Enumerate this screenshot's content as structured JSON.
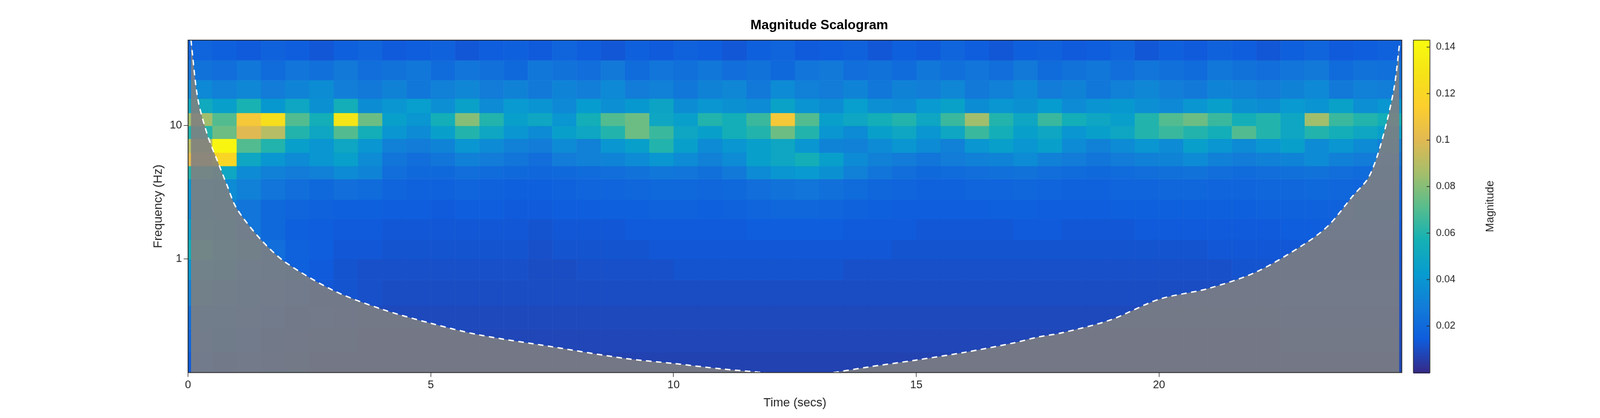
{
  "chart_data": {
    "type": "heatmap",
    "title": "Magnitude Scalogram",
    "x_label": "Time (secs)",
    "y_label": "Frequency (Hz)",
    "xlim": [
      0,
      25
    ],
    "xticks": [
      0,
      5,
      10,
      15,
      20
    ],
    "ylim": [
      0.141,
      43.8
    ],
    "yticks": [
      1,
      10
    ],
    "log": "y",
    "grid": false,
    "x_edges": [
      0,
      0.5,
      1,
      1.5,
      2,
      2.5,
      3,
      3.5,
      4,
      4.5,
      5,
      5.5,
      6,
      6.5,
      7,
      7.5,
      8,
      8.5,
      9,
      9.5,
      10,
      10.5,
      11,
      11.5,
      12,
      12.5,
      13,
      13.5,
      14,
      14.5,
      15,
      15.5,
      16,
      16.5,
      17,
      17.5,
      18,
      18.5,
      19,
      19.5,
      20,
      20.5,
      21,
      21.5,
      22,
      22.5,
      23,
      23.5,
      24,
      24.5,
      25
    ],
    "y_edges": [
      0.141,
      0.2,
      0.3,
      0.45,
      0.7,
      1,
      1.4,
      2,
      2.8,
      4,
      5,
      6.3,
      8,
      10,
      12.5,
      16,
      22,
      31,
      43.8
    ],
    "magnitude": [
      [
        0.014,
        0.013,
        0.011,
        0.01,
        0.009,
        0.008,
        0.008,
        0.007,
        0.007,
        0.007,
        0.007,
        0.007,
        0.007,
        0.007,
        0.007,
        0.007,
        0.007,
        0.007,
        0.007,
        0.007,
        0.007,
        0.007,
        0.007,
        0.007,
        0.007,
        0.007,
        0.007,
        0.007,
        0.007,
        0.007,
        0.007,
        0.007,
        0.007,
        0.007,
        0.007,
        0.007,
        0.007,
        0.007,
        0.007,
        0.007,
        0.007,
        0.007,
        0.007,
        0.007,
        0.007,
        0.008,
        0.008,
        0.008,
        0.008,
        0.008
      ],
      [
        0.018,
        0.016,
        0.014,
        0.012,
        0.01,
        0.009,
        0.009,
        0.008,
        0.008,
        0.008,
        0.008,
        0.008,
        0.008,
        0.008,
        0.008,
        0.008,
        0.008,
        0.008,
        0.008,
        0.008,
        0.008,
        0.008,
        0.008,
        0.008,
        0.008,
        0.008,
        0.008,
        0.008,
        0.008,
        0.008,
        0.008,
        0.008,
        0.008,
        0.008,
        0.008,
        0.008,
        0.008,
        0.008,
        0.008,
        0.008,
        0.008,
        0.008,
        0.008,
        0.008,
        0.008,
        0.009,
        0.009,
        0.009,
        0.009,
        0.009
      ],
      [
        0.022,
        0.02,
        0.017,
        0.014,
        0.012,
        0.011,
        0.01,
        0.009,
        0.009,
        0.009,
        0.009,
        0.009,
        0.009,
        0.009,
        0.009,
        0.009,
        0.009,
        0.009,
        0.009,
        0.009,
        0.009,
        0.009,
        0.009,
        0.009,
        0.009,
        0.009,
        0.009,
        0.009,
        0.009,
        0.009,
        0.009,
        0.009,
        0.009,
        0.009,
        0.009,
        0.009,
        0.009,
        0.009,
        0.009,
        0.009,
        0.009,
        0.009,
        0.009,
        0.009,
        0.009,
        0.01,
        0.01,
        0.01,
        0.01,
        0.01
      ],
      [
        0.03,
        0.028,
        0.022,
        0.018,
        0.015,
        0.013,
        0.012,
        0.011,
        0.01,
        0.01,
        0.01,
        0.01,
        0.01,
        0.01,
        0.01,
        0.01,
        0.01,
        0.01,
        0.01,
        0.01,
        0.01,
        0.01,
        0.01,
        0.01,
        0.01,
        0.01,
        0.01,
        0.01,
        0.01,
        0.01,
        0.01,
        0.01,
        0.01,
        0.01,
        0.01,
        0.01,
        0.01,
        0.01,
        0.01,
        0.01,
        0.01,
        0.01,
        0.01,
        0.01,
        0.01,
        0.011,
        0.011,
        0.011,
        0.011,
        0.011
      ],
      [
        0.04,
        0.035,
        0.025,
        0.02,
        0.016,
        0.014,
        0.012,
        0.011,
        0.011,
        0.011,
        0.011,
        0.011,
        0.011,
        0.011,
        0.01,
        0.01,
        0.011,
        0.011,
        0.011,
        0.011,
        0.012,
        0.012,
        0.012,
        0.012,
        0.012,
        0.012,
        0.012,
        0.011,
        0.011,
        0.011,
        0.011,
        0.011,
        0.011,
        0.011,
        0.011,
        0.011,
        0.011,
        0.011,
        0.011,
        0.011,
        0.011,
        0.011,
        0.011,
        0.012,
        0.012,
        0.012,
        0.012,
        0.012,
        0.012,
        0.012
      ],
      [
        0.055,
        0.045,
        0.03,
        0.022,
        0.017,
        0.015,
        0.013,
        0.013,
        0.012,
        0.012,
        0.012,
        0.012,
        0.012,
        0.012,
        0.011,
        0.012,
        0.012,
        0.012,
        0.012,
        0.013,
        0.013,
        0.013,
        0.013,
        0.013,
        0.013,
        0.013,
        0.013,
        0.013,
        0.013,
        0.012,
        0.012,
        0.012,
        0.012,
        0.012,
        0.012,
        0.012,
        0.012,
        0.012,
        0.012,
        0.012,
        0.012,
        0.012,
        0.013,
        0.013,
        0.013,
        0.013,
        0.013,
        0.013,
        0.013,
        0.013
      ],
      [
        0.045,
        0.035,
        0.025,
        0.02,
        0.016,
        0.015,
        0.014,
        0.014,
        0.013,
        0.013,
        0.013,
        0.013,
        0.013,
        0.013,
        0.012,
        0.013,
        0.013,
        0.013,
        0.014,
        0.014,
        0.014,
        0.014,
        0.014,
        0.015,
        0.015,
        0.015,
        0.015,
        0.014,
        0.014,
        0.014,
        0.013,
        0.013,
        0.013,
        0.013,
        0.014,
        0.014,
        0.013,
        0.013,
        0.013,
        0.014,
        0.014,
        0.014,
        0.014,
        0.014,
        0.014,
        0.015,
        0.015,
        0.015,
        0.014,
        0.014
      ],
      [
        0.035,
        0.03,
        0.025,
        0.02,
        0.018,
        0.017,
        0.016,
        0.016,
        0.015,
        0.015,
        0.014,
        0.015,
        0.015,
        0.014,
        0.014,
        0.015,
        0.015,
        0.016,
        0.016,
        0.017,
        0.017,
        0.016,
        0.017,
        0.018,
        0.019,
        0.019,
        0.018,
        0.017,
        0.016,
        0.015,
        0.015,
        0.015,
        0.015,
        0.016,
        0.016,
        0.015,
        0.015,
        0.015,
        0.016,
        0.016,
        0.016,
        0.016,
        0.016,
        0.016,
        0.017,
        0.017,
        0.017,
        0.017,
        0.016,
        0.016
      ],
      [
        0.04,
        0.035,
        0.03,
        0.025,
        0.022,
        0.02,
        0.022,
        0.021,
        0.018,
        0.017,
        0.017,
        0.018,
        0.017,
        0.016,
        0.016,
        0.017,
        0.018,
        0.018,
        0.019,
        0.02,
        0.02,
        0.019,
        0.02,
        0.022,
        0.024,
        0.025,
        0.023,
        0.021,
        0.019,
        0.018,
        0.017,
        0.017,
        0.018,
        0.018,
        0.019,
        0.018,
        0.017,
        0.017,
        0.018,
        0.018,
        0.019,
        0.019,
        0.018,
        0.018,
        0.019,
        0.019,
        0.02,
        0.019,
        0.018,
        0.018
      ],
      [
        0.06,
        0.05,
        0.035,
        0.03,
        0.028,
        0.03,
        0.035,
        0.032,
        0.022,
        0.02,
        0.02,
        0.022,
        0.021,
        0.02,
        0.019,
        0.02,
        0.021,
        0.022,
        0.024,
        0.026,
        0.025,
        0.023,
        0.027,
        0.035,
        0.04,
        0.042,
        0.038,
        0.03,
        0.025,
        0.022,
        0.02,
        0.021,
        0.022,
        0.023,
        0.024,
        0.022,
        0.021,
        0.02,
        0.021,
        0.022,
        0.023,
        0.024,
        0.022,
        0.021,
        0.022,
        0.023,
        0.024,
        0.022,
        0.021,
        0.02
      ],
      [
        0.1,
        0.12,
        0.05,
        0.04,
        0.035,
        0.04,
        0.045,
        0.035,
        0.025,
        0.022,
        0.025,
        0.03,
        0.028,
        0.025,
        0.022,
        0.028,
        0.03,
        0.032,
        0.035,
        0.04,
        0.035,
        0.03,
        0.035,
        0.045,
        0.05,
        0.055,
        0.045,
        0.035,
        0.03,
        0.028,
        0.025,
        0.028,
        0.03,
        0.032,
        0.035,
        0.03,
        0.028,
        0.025,
        0.028,
        0.03,
        0.032,
        0.035,
        0.03,
        0.028,
        0.03,
        0.032,
        0.035,
        0.03,
        0.028,
        0.025
      ],
      [
        0.09,
        0.14,
        0.07,
        0.06,
        0.045,
        0.04,
        0.05,
        0.04,
        0.03,
        0.028,
        0.032,
        0.04,
        0.035,
        0.03,
        0.028,
        0.035,
        0.03,
        0.04,
        0.045,
        0.06,
        0.045,
        0.035,
        0.04,
        0.045,
        0.05,
        0.04,
        0.032,
        0.03,
        0.035,
        0.04,
        0.035,
        0.03,
        0.04,
        0.045,
        0.04,
        0.045,
        0.035,
        0.03,
        0.035,
        0.04,
        0.035,
        0.045,
        0.04,
        0.035,
        0.04,
        0.045,
        0.035,
        0.04,
        0.035,
        0.03
      ],
      [
        0.06,
        0.075,
        0.1,
        0.09,
        0.06,
        0.05,
        0.07,
        0.055,
        0.04,
        0.035,
        0.045,
        0.06,
        0.05,
        0.04,
        0.035,
        0.045,
        0.05,
        0.06,
        0.075,
        0.065,
        0.05,
        0.045,
        0.055,
        0.06,
        0.075,
        0.06,
        0.04,
        0.035,
        0.045,
        0.05,
        0.04,
        0.05,
        0.065,
        0.055,
        0.045,
        0.05,
        0.04,
        0.045,
        0.05,
        0.06,
        0.065,
        0.06,
        0.055,
        0.07,
        0.06,
        0.05,
        0.06,
        0.055,
        0.05,
        0.045
      ],
      [
        0.085,
        0.07,
        0.11,
        0.125,
        0.07,
        0.055,
        0.13,
        0.075,
        0.045,
        0.04,
        0.055,
        0.08,
        0.06,
        0.045,
        0.05,
        0.04,
        0.055,
        0.07,
        0.075,
        0.05,
        0.045,
        0.06,
        0.055,
        0.065,
        0.11,
        0.07,
        0.045,
        0.05,
        0.055,
        0.06,
        0.05,
        0.065,
        0.085,
        0.06,
        0.05,
        0.065,
        0.055,
        0.05,
        0.045,
        0.06,
        0.07,
        0.075,
        0.065,
        0.055,
        0.06,
        0.05,
        0.085,
        0.065,
        0.06,
        0.055
      ],
      [
        0.052,
        0.045,
        0.058,
        0.041,
        0.05,
        0.038,
        0.055,
        0.036,
        0.04,
        0.044,
        0.037,
        0.046,
        0.035,
        0.042,
        0.039,
        0.034,
        0.043,
        0.037,
        0.041,
        0.048,
        0.036,
        0.04,
        0.038,
        0.035,
        0.047,
        0.039,
        0.036,
        0.044,
        0.037,
        0.035,
        0.042,
        0.046,
        0.036,
        0.04,
        0.038,
        0.043,
        0.035,
        0.039,
        0.041,
        0.037,
        0.034,
        0.04,
        0.045,
        0.038,
        0.036,
        0.042,
        0.039,
        0.046,
        0.037,
        0.04
      ],
      [
        0.034,
        0.03,
        0.033,
        0.028,
        0.032,
        0.036,
        0.029,
        0.027,
        0.031,
        0.026,
        0.03,
        0.033,
        0.028,
        0.031,
        0.027,
        0.032,
        0.029,
        0.034,
        0.028,
        0.03,
        0.026,
        0.031,
        0.033,
        0.027,
        0.035,
        0.03,
        0.028,
        0.032,
        0.026,
        0.031,
        0.029,
        0.033,
        0.027,
        0.03,
        0.034,
        0.028,
        0.031,
        0.026,
        0.03,
        0.033,
        0.029,
        0.027,
        0.032,
        0.03,
        0.028,
        0.031,
        0.034,
        0.027,
        0.03,
        0.029
      ],
      [
        0.024,
        0.022,
        0.026,
        0.021,
        0.025,
        0.023,
        0.027,
        0.022,
        0.024,
        0.026,
        0.021,
        0.025,
        0.023,
        0.02,
        0.026,
        0.024,
        0.022,
        0.027,
        0.021,
        0.025,
        0.023,
        0.026,
        0.022,
        0.024,
        0.02,
        0.025,
        0.027,
        0.022,
        0.024,
        0.021,
        0.026,
        0.023,
        0.025,
        0.022,
        0.027,
        0.021,
        0.024,
        0.026,
        0.022,
        0.025,
        0.023,
        0.021,
        0.026,
        0.024,
        0.022,
        0.025,
        0.027,
        0.021,
        0.024,
        0.023
      ],
      [
        0.018,
        0.016,
        0.014,
        0.017,
        0.015,
        0.013,
        0.016,
        0.018,
        0.014,
        0.015,
        0.017,
        0.013,
        0.015,
        0.016,
        0.014,
        0.018,
        0.015,
        0.013,
        0.016,
        0.014,
        0.017,
        0.015,
        0.013,
        0.016,
        0.018,
        0.014,
        0.015,
        0.017,
        0.013,
        0.016,
        0.014,
        0.018,
        0.015,
        0.013,
        0.016,
        0.017,
        0.014,
        0.015,
        0.018,
        0.013,
        0.016,
        0.014,
        0.017,
        0.015,
        0.013,
        0.016,
        0.018,
        0.014,
        0.015,
        0.017
      ]
    ],
    "colorbar": {
      "range": [
        0,
        0.143
      ],
      "ticks": [
        0.02,
        0.04,
        0.06,
        0.08,
        0.1,
        0.12,
        0.14
      ],
      "label": "Magnitude"
    },
    "coi": {
      "time": [
        0.06,
        0.2,
        0.4,
        0.6,
        0.8,
        1,
        1.5,
        2,
        3,
        4,
        5,
        6,
        7.5,
        9,
        10,
        11,
        12,
        12.5,
        13,
        13.3,
        14,
        15,
        16,
        17,
        17.5,
        18,
        19,
        20,
        21,
        22,
        23,
        23.5,
        24,
        24.3,
        24.5,
        24.7,
        24.85,
        24.95
      ],
      "frequency": [
        43.8,
        16,
        8.5,
        5.5,
        3.6,
        2.4,
        1.4,
        0.95,
        0.58,
        0.42,
        0.33,
        0.27,
        0.22,
        0.18,
        0.165,
        0.15,
        0.139,
        0.13,
        0.136,
        0.141,
        0.155,
        0.175,
        0.2,
        0.235,
        0.26,
        0.28,
        0.35,
        0.5,
        0.6,
        0.8,
        1.3,
        1.8,
        3,
        4,
        6,
        11,
        20,
        40
      ],
      "color": "#ffffff",
      "line_style": "dashed"
    }
  }
}
